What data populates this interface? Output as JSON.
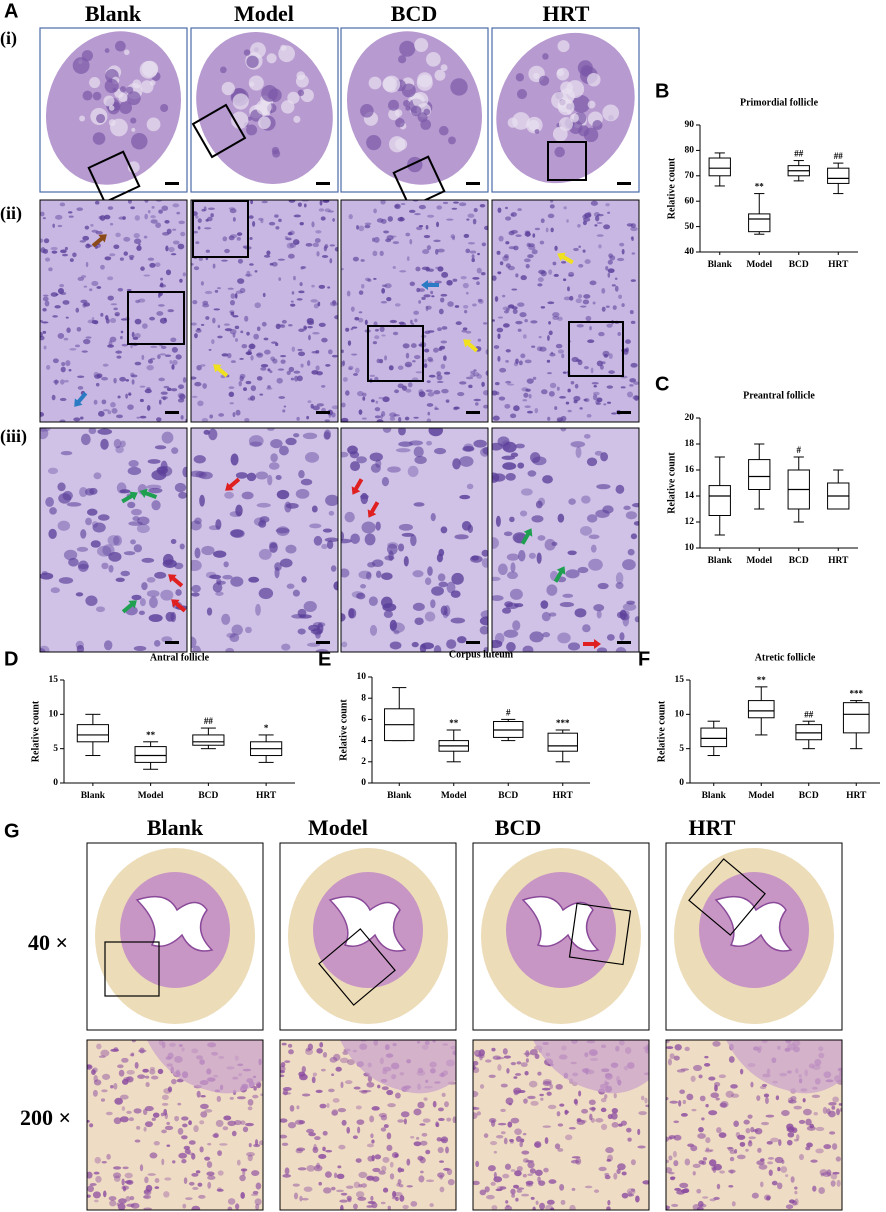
{
  "figure_a": {
    "label": "A",
    "rows": [
      "(i)",
      "(ii)",
      "(iii)"
    ],
    "groups": [
      "Blank",
      "Model",
      "BCD",
      "HRT"
    ]
  },
  "figure_g": {
    "label": "G",
    "groups": [
      "Blank",
      "Model",
      "BCD",
      "HRT"
    ],
    "magnifications": [
      "40 ×",
      "200 ×"
    ]
  },
  "chart_data": [
    {
      "type": "box",
      "panel_label": "B",
      "title": "Primordial follicle",
      "y_label": "Relative count",
      "categories": [
        "Blank",
        "Model",
        "BCD",
        "HRT"
      ],
      "ylim": [
        40,
        90
      ],
      "yticks": [
        40,
        50,
        60,
        70,
        80,
        90
      ],
      "boxes": [
        {
          "min": 66,
          "q1": 70,
          "median": 73,
          "q3": 77,
          "max": 79
        },
        {
          "min": 47,
          "q1": 48,
          "median": 53,
          "q3": 55,
          "max": 63
        },
        {
          "min": 68,
          "q1": 70,
          "median": 72,
          "q3": 74,
          "max": 76
        },
        {
          "min": 63,
          "q1": 67,
          "median": 69,
          "q3": 73,
          "max": 75
        }
      ],
      "annotations": [
        null,
        "**",
        "##",
        "##"
      ]
    },
    {
      "type": "box",
      "panel_label": "C",
      "title": "Preantral follicle",
      "y_label": "Relative count",
      "categories": [
        "Blank",
        "Model",
        "BCD",
        "HRT"
      ],
      "ylim": [
        10,
        20
      ],
      "yticks": [
        10,
        12,
        14,
        16,
        18,
        20
      ],
      "boxes": [
        {
          "min": 11,
          "q1": 12.5,
          "median": 14,
          "q3": 14.8,
          "max": 17
        },
        {
          "min": 13,
          "q1": 14.5,
          "median": 15.5,
          "q3": 16.8,
          "max": 18
        },
        {
          "min": 12,
          "q1": 13,
          "median": 14.5,
          "q3": 16,
          "max": 17
        },
        {
          "min": 13,
          "q1": 13,
          "median": 14,
          "q3": 15,
          "max": 16
        }
      ],
      "annotations": [
        null,
        null,
        "#",
        null
      ]
    },
    {
      "type": "box",
      "panel_label": "D",
      "title": "Antral follicle",
      "y_label": "Relative count",
      "categories": [
        "Blank",
        "Model",
        "BCD",
        "HRT"
      ],
      "ylim": [
        0,
        15
      ],
      "yticks": [
        0,
        5,
        10,
        15
      ],
      "boxes": [
        {
          "min": 4,
          "q1": 6,
          "median": 7,
          "q3": 8.5,
          "max": 10
        },
        {
          "min": 2,
          "q1": 3,
          "median": 4,
          "q3": 5.3,
          "max": 6
        },
        {
          "min": 5,
          "q1": 5.5,
          "median": 6,
          "q3": 7,
          "max": 8
        },
        {
          "min": 3,
          "q1": 4,
          "median": 5,
          "q3": 6,
          "max": 7
        }
      ],
      "annotations": [
        null,
        "**",
        "##",
        "*"
      ]
    },
    {
      "type": "box",
      "panel_label": "E",
      "title": "Corpus luteum",
      "y_label": "Relative count",
      "categories": [
        "Blank",
        "Model",
        "BCD",
        "HRT"
      ],
      "ylim": [
        0,
        10
      ],
      "yticks": [
        0,
        2,
        4,
        6,
        8,
        10
      ],
      "boxes": [
        {
          "min": 4,
          "q1": 4,
          "median": 5.5,
          "q3": 7,
          "max": 9
        },
        {
          "min": 2,
          "q1": 3,
          "median": 3.5,
          "q3": 4,
          "max": 5
        },
        {
          "min": 4,
          "q1": 4.3,
          "median": 5,
          "q3": 5.8,
          "max": 6
        },
        {
          "min": 2,
          "q1": 3,
          "median": 3.5,
          "q3": 4.7,
          "max": 5
        }
      ],
      "annotations": [
        null,
        "**",
        "#",
        "***"
      ]
    },
    {
      "type": "box",
      "panel_label": "F",
      "title": "Atretic follicle",
      "y_label": "Relative count",
      "categories": [
        "Blank",
        "Model",
        "BCD",
        "HRT"
      ],
      "ylim": [
        0,
        15
      ],
      "yticks": [
        0,
        5,
        10,
        15
      ],
      "boxes": [
        {
          "min": 4,
          "q1": 5.3,
          "median": 6.5,
          "q3": 8,
          "max": 9
        },
        {
          "min": 7,
          "q1": 9.5,
          "median": 10.5,
          "q3": 12,
          "max": 14
        },
        {
          "min": 5,
          "q1": 6.3,
          "median": 7.3,
          "q3": 8.5,
          "max": 9
        },
        {
          "min": 5,
          "q1": 7.3,
          "median": 10,
          "q3": 11.7,
          "max": 12
        }
      ],
      "annotations": [
        null,
        "**",
        "##",
        "***"
      ]
    }
  ]
}
